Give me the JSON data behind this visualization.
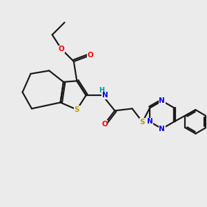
{
  "bg_color": "#ebebeb",
  "bond_color": "#1a1a1a",
  "bond_width": 1.6,
  "atom_colors": {
    "S": "#b8a000",
    "O": "#ff0000",
    "N": "#0000ee",
    "H": "#009988",
    "C": "#1a1a1a"
  },
  "figsize": [
    3.0,
    3.0
  ],
  "dpi": 100
}
